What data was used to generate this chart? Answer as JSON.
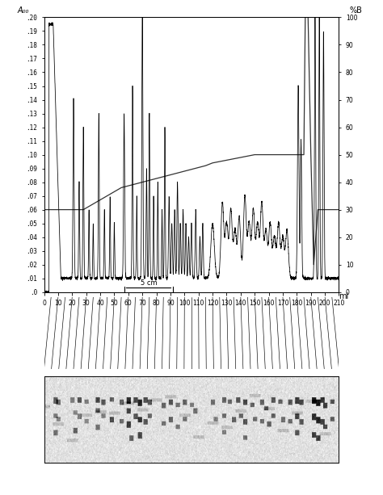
{
  "ylabel_left": "A₀₀",
  "ylabel_right": "%B",
  "xlabel": "ml",
  "xlim": [
    0,
    210
  ],
  "ylim_left": [
    0,
    0.2
  ],
  "ylim_right": [
    0,
    100
  ],
  "yticks_left": [
    0.0,
    0.01,
    0.02,
    0.03,
    0.04,
    0.05,
    0.06,
    0.07,
    0.08,
    0.09,
    0.1,
    0.11,
    0.12,
    0.13,
    0.14,
    0.15,
    0.16,
    0.17,
    0.18,
    0.19,
    0.2
  ],
  "ytick_labels_left": [
    ".0",
    ".01",
    ".02",
    ".03",
    ".04",
    ".05",
    ".06",
    ".07",
    ".08",
    ".09",
    ".10",
    ".11",
    ".12",
    ".13",
    ".14",
    ".15",
    ".16",
    ".17",
    ".18",
    ".19",
    ".20"
  ],
  "yticks_right": [
    0,
    10,
    20,
    30,
    40,
    50,
    60,
    70,
    80,
    90,
    100
  ],
  "xticks": [
    0,
    10,
    20,
    30,
    40,
    50,
    60,
    70,
    80,
    90,
    100,
    110,
    120,
    130,
    140,
    150,
    160,
    170,
    180,
    190,
    200,
    210
  ],
  "gradient_x": [
    0,
    2,
    10,
    28,
    55,
    70,
    100,
    115,
    120,
    150,
    175,
    185,
    186,
    188,
    190,
    192,
    195,
    197,
    200,
    205,
    210
  ],
  "gradient_pct": [
    30,
    30,
    30,
    30,
    38,
    40,
    44,
    46,
    47,
    50,
    50,
    50,
    100,
    100,
    50,
    10,
    30,
    30,
    30,
    30,
    30
  ],
  "bracket_x1": 57,
  "bracket_x2": 92,
  "bracket_label": "5 cm",
  "bg_color": "#ffffff",
  "plot_bg": "#ffffff",
  "line_color": "#000000",
  "gradient_color": "#333333",
  "tick_fontsize": 5.5,
  "label_fontsize": 7.0
}
